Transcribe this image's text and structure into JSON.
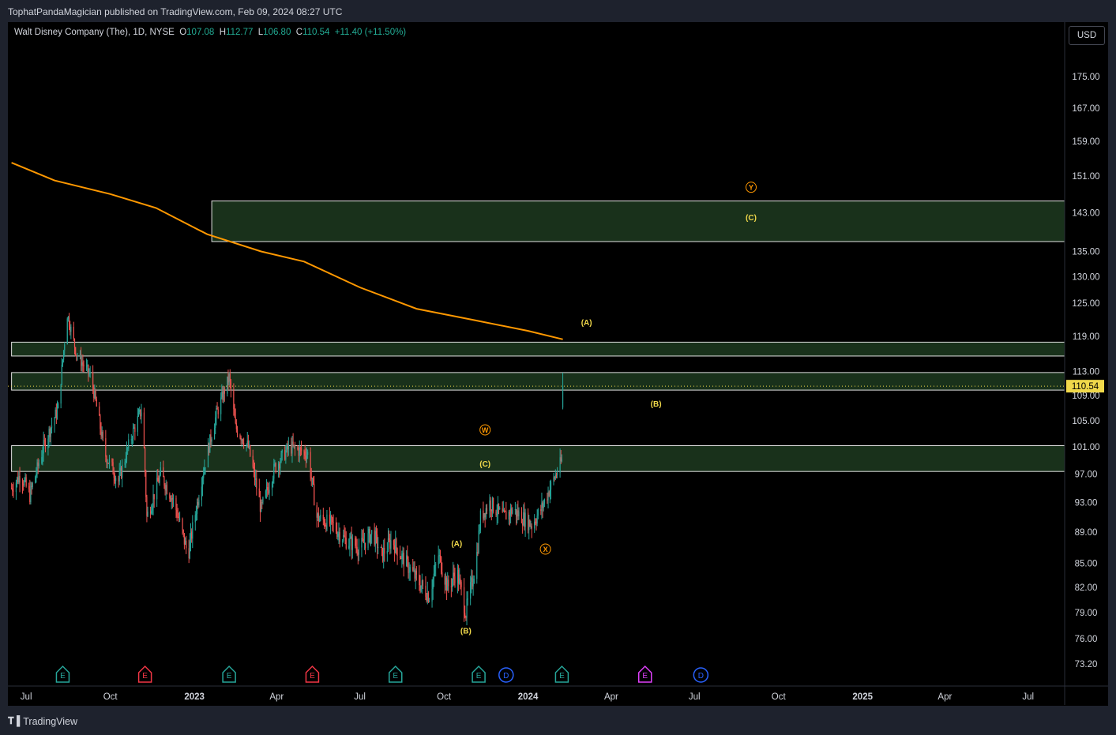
{
  "header": {
    "published_by": "TophatPandaMagician published on TradingView.com, Feb 09, 2024 08:27 UTC"
  },
  "legend": {
    "symbol": "Walt Disney Company (The), 1D, NYSE",
    "open_label": "O",
    "open": "107.08",
    "high_label": "H",
    "high": "112.77",
    "low_label": "L",
    "low": "106.80",
    "close_label": "C",
    "close": "110.54",
    "change": "+11.40 (+11.50%)"
  },
  "toolbar": {
    "currency": "USD"
  },
  "footer": {
    "brand": "TradingView"
  },
  "chart_data": {
    "type": "candlestick",
    "title": "Walt Disney Company (The), 1D, NYSE",
    "last_price": 110.54,
    "last_price_label": "110.54",
    "price_ticks": [
      "175.00",
      "167.00",
      "159.00",
      "151.00",
      "143.00",
      "135.00",
      "130.00",
      "125.00",
      "119.00",
      "113.00",
      "109.00",
      "105.00",
      "101.00",
      "97.00",
      "93.00",
      "89.00",
      "85.00",
      "82.00",
      "79.00",
      "76.00",
      "73.20"
    ],
    "time_ticks": [
      {
        "label": "Jul",
        "date": "2022-07-01",
        "bold": false
      },
      {
        "label": "Oct",
        "date": "2022-10-01",
        "bold": false
      },
      {
        "label": "2023",
        "date": "2023-01-01",
        "bold": true
      },
      {
        "label": "Apr",
        "date": "2023-04-01",
        "bold": false
      },
      {
        "label": "Jul",
        "date": "2023-07-01",
        "bold": false
      },
      {
        "label": "Oct",
        "date": "2023-10-01",
        "bold": false
      },
      {
        "label": "2024",
        "date": "2024-01-01",
        "bold": true
      },
      {
        "label": "Apr",
        "date": "2024-04-01",
        "bold": false
      },
      {
        "label": "Jul",
        "date": "2024-07-01",
        "bold": false
      },
      {
        "label": "Oct",
        "date": "2024-10-01",
        "bold": false
      },
      {
        "label": "2025",
        "date": "2025-01-01",
        "bold": true
      },
      {
        "label": "Apr",
        "date": "2025-04-01",
        "bold": false
      },
      {
        "label": "Jul",
        "date": "2025-07-01",
        "bold": false
      }
    ],
    "price_path": [
      [
        "2022-06-15",
        95
      ],
      [
        "2022-06-25",
        97
      ],
      [
        "2022-07-05",
        94
      ],
      [
        "2022-07-20",
        101
      ],
      [
        "2022-08-05",
        107
      ],
      [
        "2022-08-15",
        123
      ],
      [
        "2022-08-25",
        116
      ],
      [
        "2022-09-10",
        112
      ],
      [
        "2022-09-25",
        100
      ],
      [
        "2022-10-10",
        96
      ],
      [
        "2022-10-25",
        103
      ],
      [
        "2022-11-05",
        107
      ],
      [
        "2022-11-10",
        91
      ],
      [
        "2022-11-25",
        97
      ],
      [
        "2022-12-10",
        93
      ],
      [
        "2022-12-25",
        86
      ],
      [
        "2023-01-10",
        97
      ],
      [
        "2023-01-25",
        106
      ],
      [
        "2023-02-08",
        112
      ],
      [
        "2023-02-15",
        104
      ],
      [
        "2023-03-01",
        101
      ],
      [
        "2023-03-15",
        92
      ],
      [
        "2023-03-30",
        98
      ],
      [
        "2023-04-15",
        101
      ],
      [
        "2023-05-05",
        100
      ],
      [
        "2023-05-15",
        91
      ],
      [
        "2023-06-01",
        90
      ],
      [
        "2023-06-15",
        88
      ],
      [
        "2023-07-01",
        87
      ],
      [
        "2023-07-15",
        89
      ],
      [
        "2023-07-25",
        86
      ],
      [
        "2023-08-05",
        88
      ],
      [
        "2023-08-15",
        86
      ],
      [
        "2023-09-01",
        83
      ],
      [
        "2023-09-15",
        81
      ],
      [
        "2023-09-25",
        86
      ],
      [
        "2023-10-05",
        82
      ],
      [
        "2023-10-15",
        84
      ],
      [
        "2023-10-25",
        79
      ],
      [
        "2023-11-05",
        85
      ],
      [
        "2023-11-10",
        91
      ],
      [
        "2023-11-20",
        93
      ],
      [
        "2023-12-05",
        91
      ],
      [
        "2023-12-15",
        92
      ],
      [
        "2024-01-05",
        90
      ],
      [
        "2024-01-15",
        92
      ],
      [
        "2024-01-25",
        95
      ],
      [
        "2024-02-07",
        99
      ],
      [
        "2024-02-08",
        110.5
      ]
    ],
    "ma_line": {
      "color": "#ff9800",
      "points": [
        [
          "2022-06-15",
          154
        ],
        [
          "2022-08-01",
          150
        ],
        [
          "2022-10-01",
          147
        ],
        [
          "2022-11-20",
          144
        ],
        [
          "2023-01-15",
          138.5
        ],
        [
          "2023-03-15",
          135
        ],
        [
          "2023-05-01",
          133
        ],
        [
          "2023-07-01",
          128
        ],
        [
          "2023-09-01",
          124
        ],
        [
          "2023-11-01",
          122
        ],
        [
          "2024-01-01",
          120
        ],
        [
          "2024-02-08",
          118.5
        ]
      ]
    },
    "zones": [
      {
        "from": "2023-01-20",
        "y1": 145.5,
        "y2": 137
      },
      {
        "from": "2022-06-15",
        "y1": 118,
        "y2": 115.6
      },
      {
        "from": "2022-06-15",
        "y1": 112.8,
        "y2": 109.9
      },
      {
        "from": "2022-06-15",
        "y1": 101.2,
        "y2": 97.4
      }
    ],
    "wave_labels": [
      {
        "text": "(A)",
        "date": "2023-10-15",
        "price": 87.5,
        "color": "#f0d84a",
        "circled": false
      },
      {
        "text": "(B)",
        "date": "2023-10-25",
        "price": 76.9,
        "color": "#f0d84a",
        "circled": false
      },
      {
        "text": "(C)",
        "date": "2023-11-15",
        "price": 98.5,
        "color": "#f0d84a",
        "circled": false
      },
      {
        "text": "W",
        "date": "2023-11-15",
        "price": 103.6,
        "color": "#ff9800",
        "circled": true
      },
      {
        "text": "X",
        "date": "2024-01-20",
        "price": 86.8,
        "color": "#ff9800",
        "circled": true
      },
      {
        "text": "(A)",
        "date": "2024-03-05",
        "price": 121.5,
        "color": "#f0d84a",
        "circled": false
      },
      {
        "text": "(B)",
        "date": "2024-05-20",
        "price": 107.7,
        "color": "#f0d84a",
        "circled": false
      },
      {
        "text": "(C)",
        "date": "2024-09-01",
        "price": 142.0,
        "color": "#f0d84a",
        "circled": false
      },
      {
        "text": "Y",
        "date": "2024-09-01",
        "price": 148.5,
        "color": "#ff9800",
        "circled": true
      }
    ],
    "event_markers": [
      {
        "type": "E",
        "date": "2022-08-10",
        "color": "#26a69a"
      },
      {
        "type": "E",
        "date": "2022-11-08",
        "color": "#f23645"
      },
      {
        "type": "E",
        "date": "2023-02-08",
        "color": "#26a69a"
      },
      {
        "type": "E",
        "date": "2023-05-10",
        "color": "#f23645"
      },
      {
        "type": "E",
        "date": "2023-08-09",
        "color": "#26a69a"
      },
      {
        "type": "E",
        "date": "2023-11-08",
        "color": "#26a69a"
      },
      {
        "type": "D",
        "date": "2023-12-08",
        "color": "#2962ff"
      },
      {
        "type": "E",
        "date": "2024-02-07",
        "color": "#26a69a"
      },
      {
        "type": "E",
        "date": "2024-05-08",
        "color": "#e040fb"
      },
      {
        "type": "D",
        "date": "2024-07-08",
        "color": "#2962ff"
      }
    ],
    "ylim": [
      73.2,
      175
    ],
    "scale": "log",
    "grid": false,
    "colors": {
      "up": "#26a69a",
      "down": "#ef5350",
      "zone_fill": "#1d3a20",
      "zone_border": "#e0e0e0",
      "last_price_bg": "#f0d84a"
    }
  }
}
